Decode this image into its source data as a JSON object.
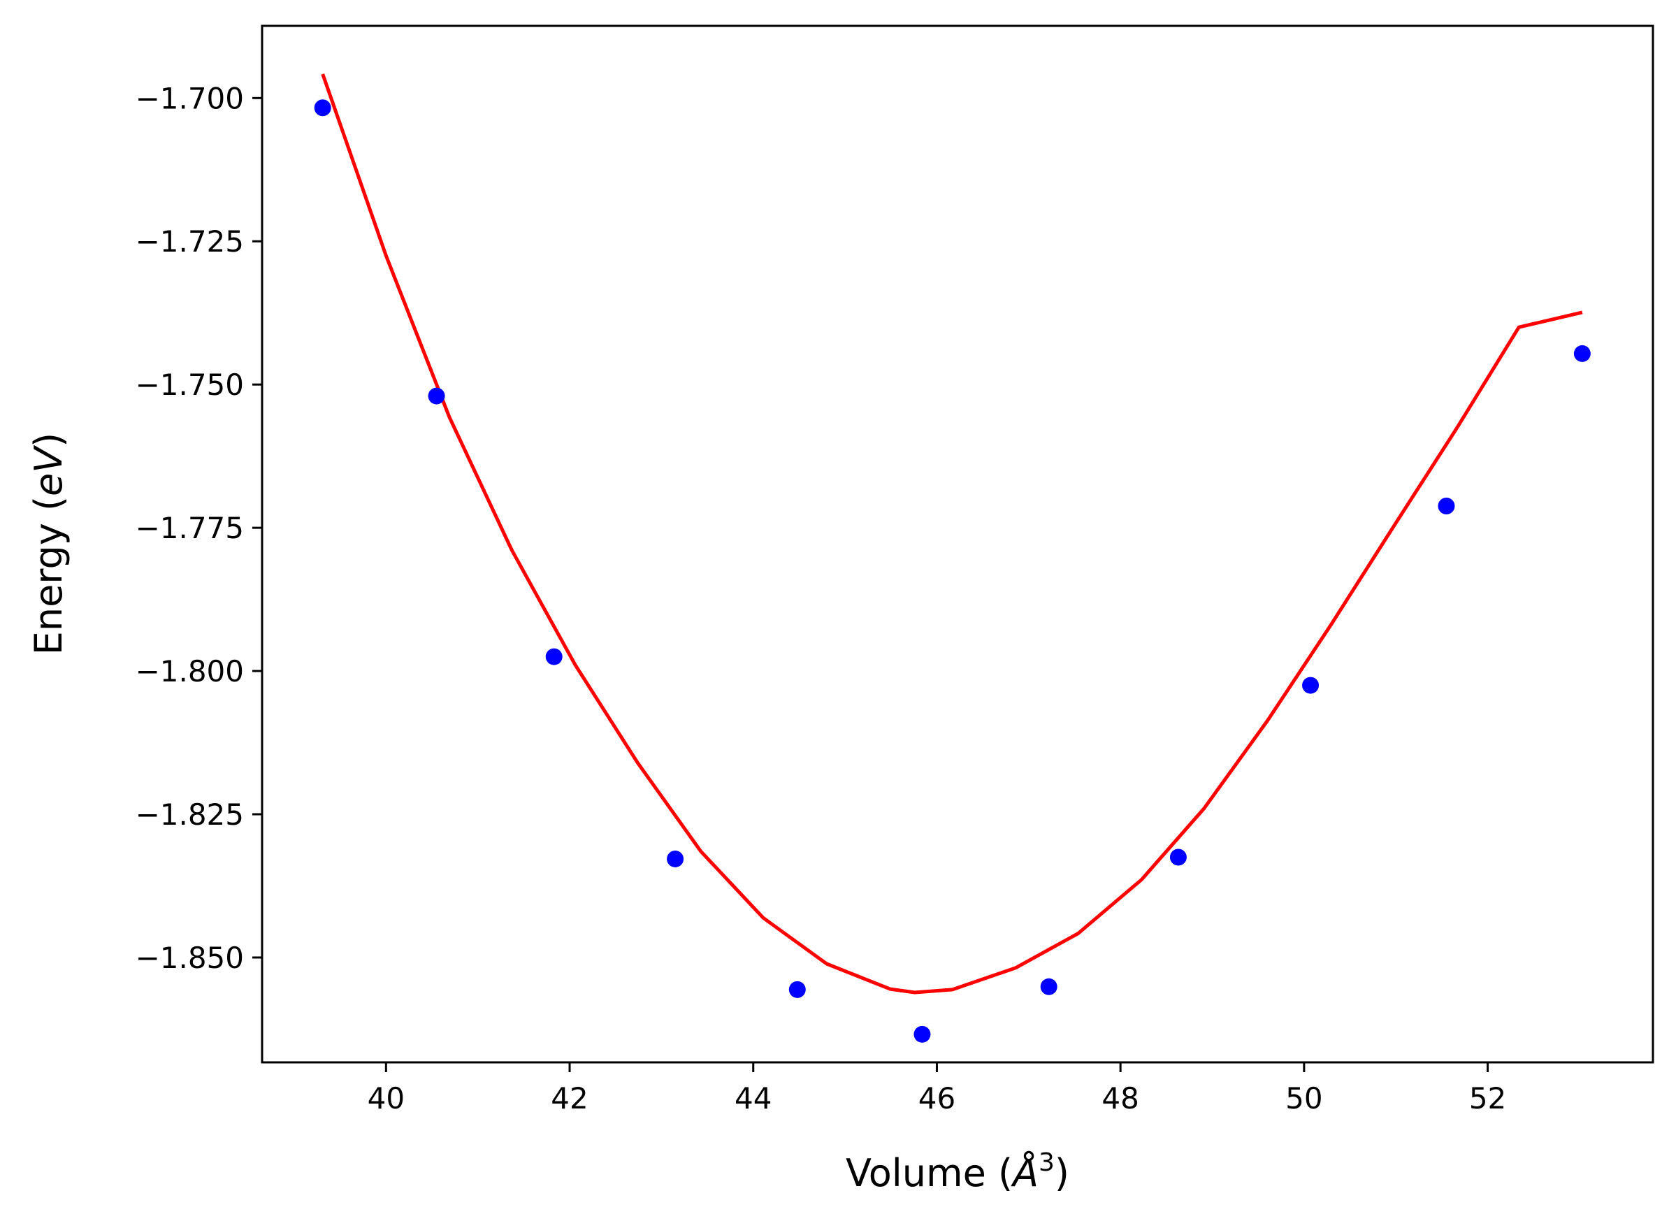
{
  "chart_data": {
    "type": "scatter",
    "title": "",
    "xlabel": {
      "prefix": "Volume (",
      "symbol": "Å",
      "superscript": "3",
      "suffix": ")"
    },
    "ylabel": {
      "prefix": "Energy (",
      "italic": "eV",
      "suffix": ")"
    },
    "xlim": [
      38.65,
      53.8
    ],
    "ylim": [
      -1.8683,
      -1.6874
    ],
    "x_ticks": [
      40,
      42,
      44,
      46,
      48,
      50,
      52
    ],
    "x_tick_labels": [
      "40",
      "42",
      "44",
      "46",
      "48",
      "50",
      "52"
    ],
    "y_ticks": [
      -1.7,
      -1.725,
      -1.75,
      -1.775,
      -1.8,
      -1.825,
      -1.85
    ],
    "y_tick_labels": [
      "−1.700",
      "−1.725",
      "−1.750",
      "−1.775",
      "−1.800",
      "−1.825",
      "−1.850"
    ],
    "grid": false,
    "legend": "none",
    "series": [
      {
        "kind": "points",
        "color": "#0000ff",
        "x": [
          39.31,
          40.55,
          41.83,
          43.15,
          44.48,
          45.84,
          47.22,
          48.63,
          50.07,
          51.55,
          53.03
        ],
        "y": [
          -1.7017,
          -1.752,
          -1.7975,
          -1.8328,
          -1.8556,
          -1.8634,
          -1.8551,
          -1.8325,
          -1.8025,
          -1.7712,
          -1.7446
        ]
      },
      {
        "kind": "fit-line",
        "color": "#ff0000",
        "x": [
          39.31,
          40.0,
          40.69,
          41.37,
          42.06,
          42.74,
          43.43,
          44.11,
          44.8,
          45.49,
          45.76,
          46.17,
          46.86,
          47.54,
          48.23,
          48.91,
          49.6,
          50.29,
          50.97,
          51.66,
          52.34,
          53.03
        ],
        "y": [
          -1.6958,
          -1.7275,
          -1.7557,
          -1.7789,
          -1.7989,
          -1.816,
          -1.8315,
          -1.8431,
          -1.8511,
          -1.8555,
          -1.8561,
          -1.8556,
          -1.8518,
          -1.8458,
          -1.8364,
          -1.824,
          -1.8087,
          -1.792,
          -1.7749,
          -1.7577,
          -1.74,
          -1.7374
        ]
      }
    ]
  }
}
